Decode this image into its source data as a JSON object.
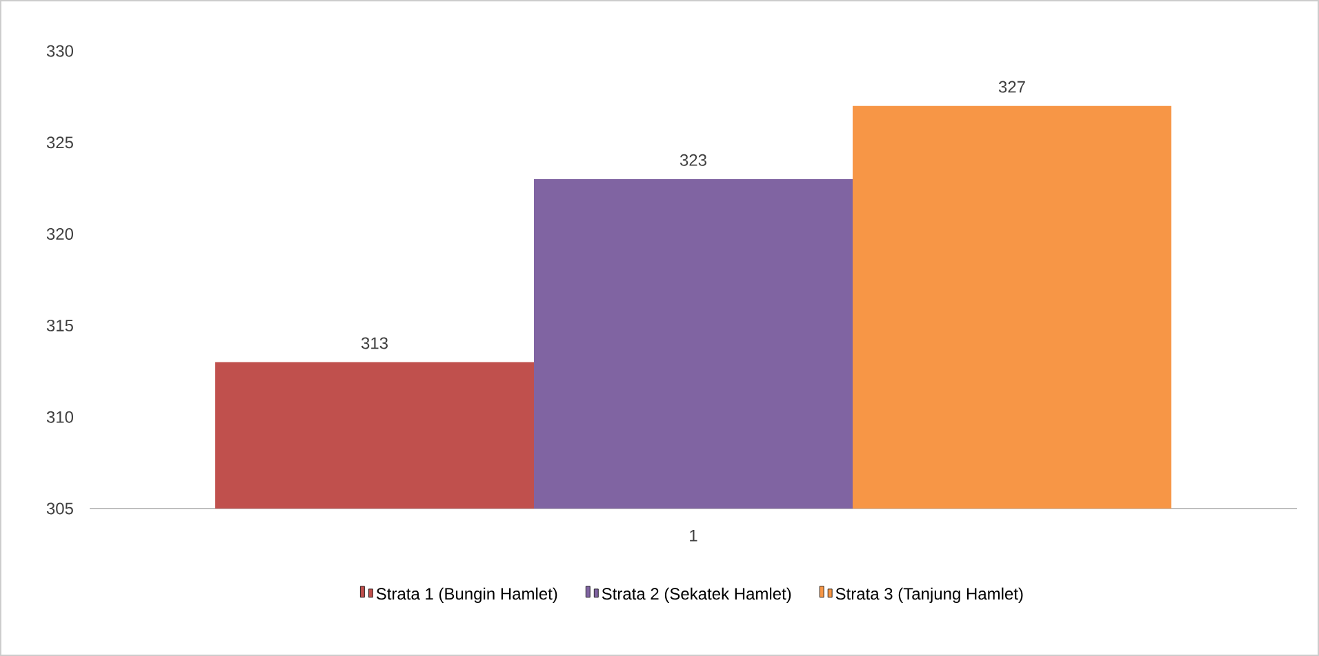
{
  "chart_data": {
    "type": "bar",
    "categories": [
      "1"
    ],
    "series": [
      {
        "name": "Strata 1 (Bungin Hamlet)",
        "color": "#c0504d",
        "values": [
          313
        ]
      },
      {
        "name": "Strata 2 (Sekatek Hamlet)",
        "color": "#8064a2",
        "values": [
          323
        ]
      },
      {
        "name": "Strata 3 (Tanjung Hamlet)",
        "color": "#f79646",
        "values": [
          327
        ]
      }
    ],
    "ylim": [
      305,
      330
    ],
    "yticks": [
      305,
      310,
      315,
      320,
      325,
      330
    ],
    "data_labels": true,
    "legend": "bottom",
    "grid": false
  }
}
